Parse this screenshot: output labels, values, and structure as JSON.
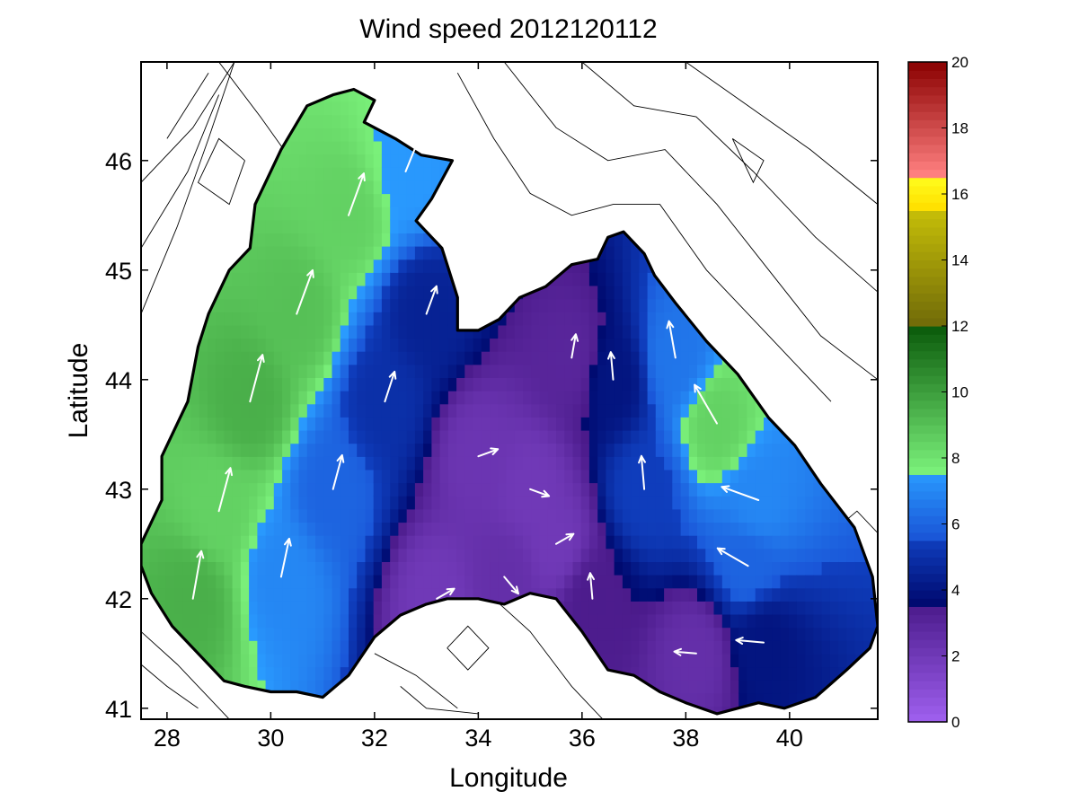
{
  "chart_data": {
    "type": "heatmap",
    "title": "Wind speed 2012120112",
    "xlabel": "Longitude",
    "ylabel": "Latitude",
    "xlim": [
      27.5,
      41.7
    ],
    "ylim": [
      40.9,
      46.9
    ],
    "xticks": [
      "28",
      "30",
      "32",
      "34",
      "36",
      "38",
      "40"
    ],
    "yticks": [
      "41",
      "42",
      "43",
      "44",
      "45",
      "46"
    ],
    "colorbar": {
      "range": [
        0,
        20
      ],
      "ticks": [
        "0",
        "2",
        "4",
        "6",
        "8",
        "10",
        "12",
        "14",
        "16",
        "18",
        "20"
      ],
      "bands": [
        {
          "from": 0,
          "to": 3.6,
          "color_low": "#a060f0",
          "color_high": "#4a1a8a"
        },
        {
          "from": 3.6,
          "to": 5.6,
          "color_low": "#000a70",
          "color_high": "#1040c0"
        },
        {
          "from": 5.6,
          "to": 7.6,
          "color_low": "#1a56d8",
          "color_high": "#2a9cff"
        },
        {
          "from": 7.6,
          "to": 12.0,
          "color_low": "#7af07a",
          "color_high": "#0a5a0a"
        },
        {
          "from": 12.0,
          "to": 15.6,
          "color_low": "#706a08",
          "color_high": "#c8c008"
        },
        {
          "from": 15.6,
          "to": 16.6,
          "color_low": "#ffe000",
          "color_high": "#ffff20"
        },
        {
          "from": 16.6,
          "to": 20.0,
          "color_low": "#ff8080",
          "color_high": "#8a0000"
        }
      ]
    },
    "wind_field": [
      {
        "lon": 28.5,
        "lat": 42.0,
        "speed": 9.5,
        "dir": 80
      },
      {
        "lon": 29.0,
        "lat": 42.8,
        "speed": 8.5,
        "dir": 75
      },
      {
        "lon": 29.6,
        "lat": 43.8,
        "speed": 9.5,
        "dir": 75
      },
      {
        "lon": 30.5,
        "lat": 44.6,
        "speed": 9.0,
        "dir": 70
      },
      {
        "lon": 31.5,
        "lat": 45.5,
        "speed": 8.5,
        "dir": 70
      },
      {
        "lon": 32.6,
        "lat": 45.9,
        "speed": 7.5,
        "dir": 68
      },
      {
        "lon": 30.2,
        "lat": 42.2,
        "speed": 7.0,
        "dir": 78
      },
      {
        "lon": 31.2,
        "lat": 43.0,
        "speed": 6.0,
        "dir": 75
      },
      {
        "lon": 32.2,
        "lat": 43.8,
        "speed": 5.0,
        "dir": 72
      },
      {
        "lon": 33.0,
        "lat": 44.6,
        "speed": 4.5,
        "dir": 70
      },
      {
        "lon": 34.0,
        "lat": 43.3,
        "speed": 2.2,
        "dir": 20
      },
      {
        "lon": 35.0,
        "lat": 43.0,
        "speed": 2.0,
        "dir": -20
      },
      {
        "lon": 34.5,
        "lat": 42.2,
        "speed": 2.5,
        "dir": -50
      },
      {
        "lon": 35.5,
        "lat": 42.5,
        "speed": 2.0,
        "dir": 30
      },
      {
        "lon": 33.2,
        "lat": 42.0,
        "speed": 2.0,
        "dir": 30
      },
      {
        "lon": 35.8,
        "lat": 44.2,
        "speed": 3.0,
        "dir": 80
      },
      {
        "lon": 36.6,
        "lat": 44.0,
        "speed": 4.0,
        "dir": 95
      },
      {
        "lon": 37.2,
        "lat": 43.0,
        "speed": 5.5,
        "dir": 95
      },
      {
        "lon": 37.8,
        "lat": 44.2,
        "speed": 6.5,
        "dir": 100
      },
      {
        "lon": 38.6,
        "lat": 43.6,
        "speed": 8.5,
        "dir": 120
      },
      {
        "lon": 39.4,
        "lat": 42.9,
        "speed": 7.0,
        "dir": 160
      },
      {
        "lon": 39.2,
        "lat": 42.3,
        "speed": 6.0,
        "dir": 150
      },
      {
        "lon": 39.5,
        "lat": 41.6,
        "speed": 4.0,
        "dir": 175
      },
      {
        "lon": 38.2,
        "lat": 41.5,
        "speed": 2.5,
        "dir": 175
      },
      {
        "lon": 36.2,
        "lat": 42.0,
        "speed": 3.5,
        "dir": 95
      }
    ]
  }
}
